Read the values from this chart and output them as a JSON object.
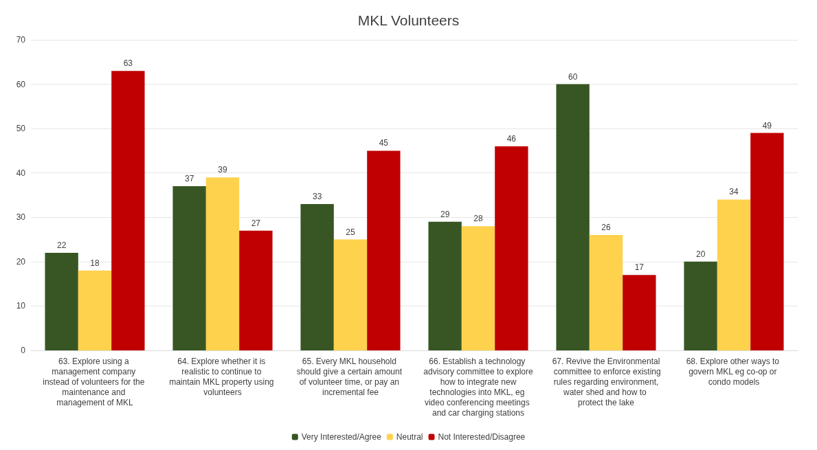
{
  "chart_data": {
    "type": "bar",
    "title": "MKL Volunteers",
    "categories": [
      "63. Explore using a management company instead of volunteers for the maintenance and management of MKL",
      "64. Explore whether it is realistic to continue to maintain MKL property using volunteers",
      "65. Every MKL household should give a certain amount of volunteer time, or pay an incremental fee",
      "66. Establish a technology advisory committee to explore how to integrate new technologies into MKL, eg video conferencing meetings and car charging stations",
      "67. Revive the Environmental committee to enforce existing rules regarding environment, water shed and how to protect the lake",
      "68. Explore other ways to govern MKL eg co-op or condo models"
    ],
    "series": [
      {
        "name": "Very Interested/Agree",
        "color": "#375623",
        "values": [
          22,
          37,
          33,
          29,
          60,
          20
        ]
      },
      {
        "name": "Neutral",
        "color": "#ffd24d",
        "values": [
          18,
          39,
          25,
          28,
          26,
          34
        ]
      },
      {
        "name": "Not Interested/Disagree",
        "color": "#c00000",
        "values": [
          63,
          27,
          45,
          46,
          17,
          49
        ]
      }
    ],
    "ylim": [
      0,
      70
    ],
    "yticks": [
      0,
      10,
      20,
      30,
      40,
      50,
      60,
      70
    ],
    "grid": "y",
    "legend": "bottom",
    "data_labels": true
  }
}
